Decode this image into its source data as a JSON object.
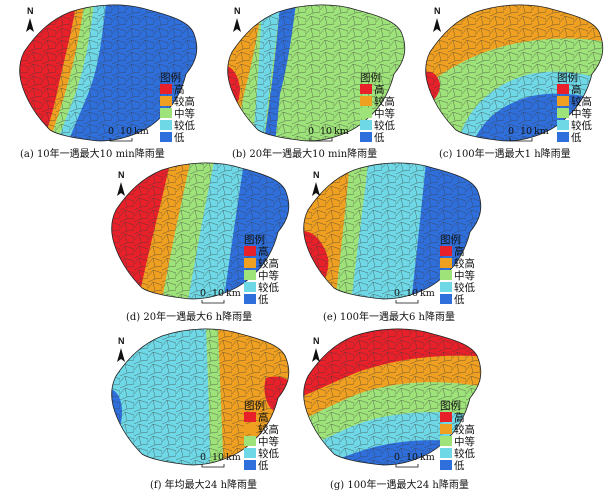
{
  "legend": {
    "title": "图例",
    "classes": [
      {
        "label": "高",
        "color": "#e8202a"
      },
      {
        "label": "较高",
        "color": "#f0a020"
      },
      {
        "label": "中等",
        "color": "#9ee27a"
      },
      {
        "label": "较低",
        "color": "#6fd8e6"
      },
      {
        "label": "低",
        "color": "#2f6fdc"
      }
    ]
  },
  "north_label": "N",
  "scale_bar": {
    "zero": "0",
    "end": "10",
    "unit": "km"
  },
  "maps": [
    {
      "id": "a",
      "caption": "(a) 10年一遇最大10 min降雨量",
      "shading": [
        0,
        1,
        2,
        3,
        4
      ]
    },
    {
      "id": "b",
      "caption": "(b) 20年一遇最大10 min降雨量",
      "shading": [
        0,
        1,
        4,
        3,
        2
      ]
    },
    {
      "id": "c",
      "caption": "(c) 100年一遇最大1 h降雨量",
      "shading": [
        0,
        1,
        2,
        3,
        4
      ]
    },
    {
      "id": "d",
      "caption": "(d) 20年一遇最大6 h降雨量",
      "shading": [
        0,
        1,
        2,
        3,
        4
      ]
    },
    {
      "id": "e",
      "caption": "(e) 100年一遇最大6 h降雨量",
      "shading": [
        0,
        1,
        2,
        3,
        4
      ]
    },
    {
      "id": "f",
      "caption": "(f) 年均最大24 h降雨量",
      "shading": [
        4,
        3,
        2,
        1,
        0
      ]
    },
    {
      "id": "g",
      "caption": "(g) 100年一遇最大24 h降雨量",
      "shading": [
        0,
        1,
        2,
        3,
        4
      ]
    }
  ]
}
